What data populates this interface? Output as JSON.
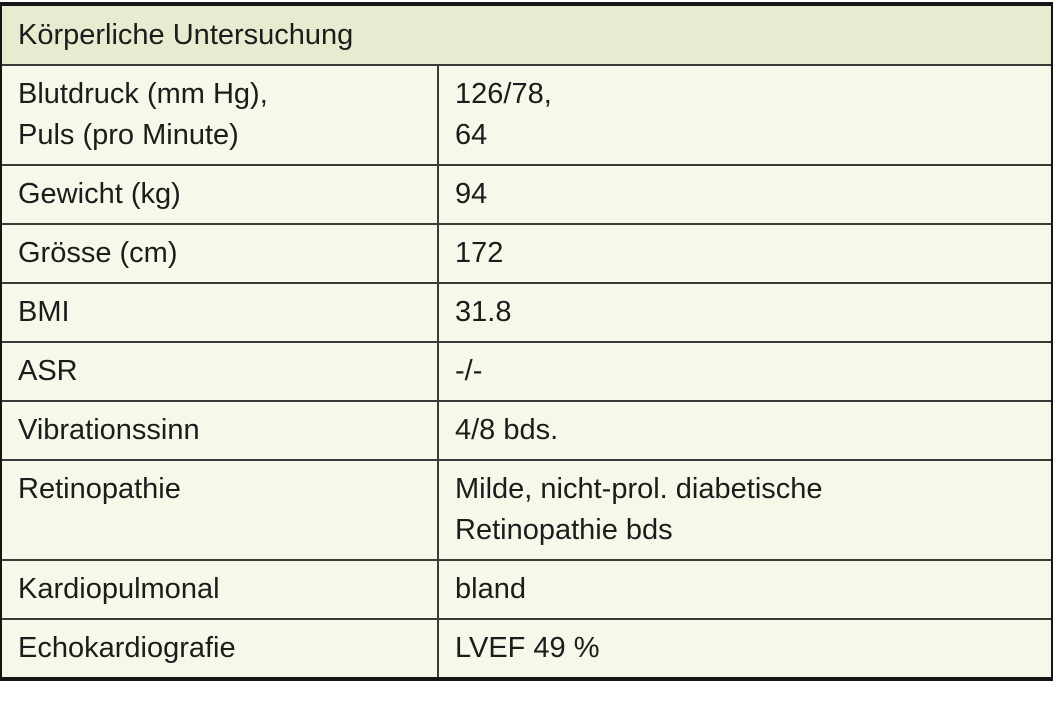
{
  "table": {
    "title": "Körperliche Untersuchung",
    "rows": [
      {
        "label": "Blutdruck (mm Hg),\nPuls (pro Minute)",
        "value": "126/78,\n64"
      },
      {
        "label": "Gewicht (kg)",
        "value": "94"
      },
      {
        "label": "Grösse (cm)",
        "value": "172"
      },
      {
        "label": "BMI",
        "value": "31.8"
      },
      {
        "label": "ASR",
        "value": "-/-"
      },
      {
        "label": "Vibrationssinn",
        "value": "4/8 bds."
      },
      {
        "label": "Retinopathie",
        "value": "Milde, nicht-prol. diabetische\nRetinopathie bds"
      },
      {
        "label": "Kardiopulmonal",
        "value": "bland"
      },
      {
        "label": "Echokardiografie",
        "value": "LVEF 49 %"
      }
    ]
  },
  "colors": {
    "header_bg": "#e7ecd1",
    "row_bg": "#f7f8ea",
    "border_outer": "#151515",
    "border_inner": "#3a3a3a",
    "text": "#1c1c1c"
  }
}
